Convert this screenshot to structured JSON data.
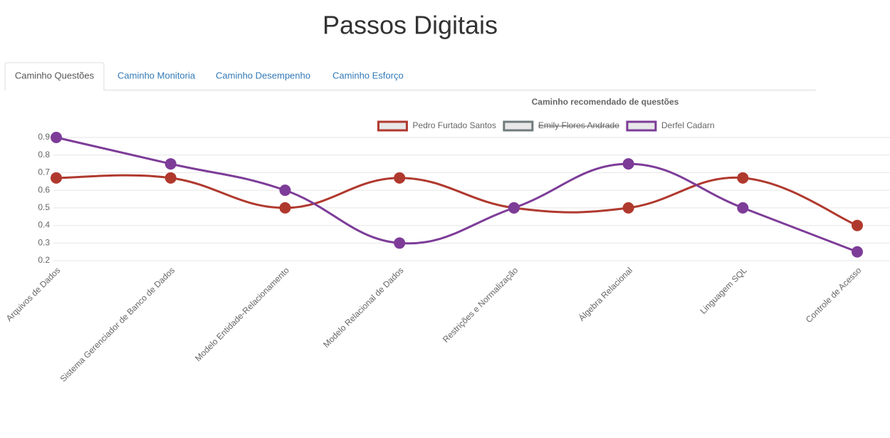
{
  "header": {
    "title": "Passos Digitais"
  },
  "tabs": [
    {
      "label": "Caminho Questões"
    },
    {
      "label": "Caminho Monitoria"
    },
    {
      "label": "Caminho Desempenho"
    },
    {
      "label": "Caminho Esforço"
    }
  ],
  "active_tab": 0,
  "chart_data": {
    "type": "line",
    "title": "Caminho recomendado de questões",
    "categories": [
      "Arquivos de Dados",
      "Sistema Gerenciador de Banco de Dados",
      "Modelo Entidade-Relacionamento",
      "Modelo Relacional de Dados",
      "Restrições e Normalização",
      "Álgebra Relacional",
      "Linguagem SQL",
      "Controle de Acesso"
    ],
    "series": [
      {
        "name": "Pedro Furtado Santos",
        "color": "#b0392e",
        "values": [
          0.67,
          0.67,
          0.5,
          0.67,
          0.5,
          0.5,
          0.67,
          0.4
        ]
      },
      {
        "name": "Emily Flores Andrade",
        "color": "#707b7c",
        "hidden": true,
        "values": [
          null,
          null,
          null,
          null,
          null,
          null,
          null,
          null
        ]
      },
      {
        "name": "Derfel Cadarn",
        "color": "#7d3c98",
        "values": [
          0.9,
          0.75,
          0.6,
          0.3,
          0.5,
          0.75,
          0.5,
          0.25
        ]
      }
    ],
    "ylim": [
      0.2,
      0.9
    ],
    "yticks": [
      0.2,
      0.3,
      0.4,
      0.5,
      0.6,
      0.7,
      0.8,
      0.9
    ],
    "grid": true,
    "legend": "top"
  }
}
